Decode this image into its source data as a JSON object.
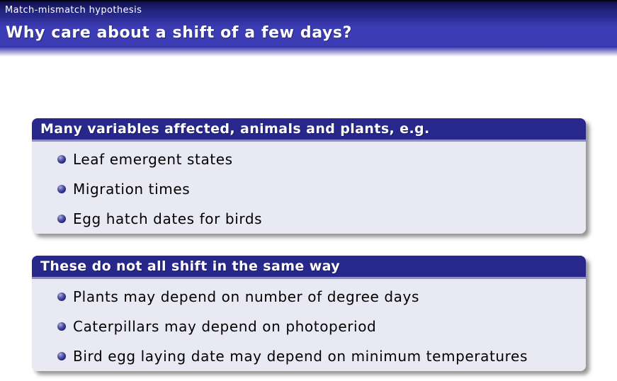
{
  "header": {
    "section": "Match-mismatch hypothesis",
    "title": "Why care about a shift of a few days?"
  },
  "blocks": [
    {
      "title": "Many variables affected, animals and plants, e.g.",
      "items": [
        "Leaf emergent states",
        "Migration times",
        "Egg hatch dates for birds"
      ]
    },
    {
      "title": "These do not all shift in the same way",
      "items": [
        "Plants may depend on number of degree days",
        "Caterpillars may depend on photoperiod",
        "Bird egg laying date may depend on minimum temperatures"
      ]
    }
  ],
  "colors": {
    "top_bar": "#23237e",
    "title_bar": "#3c3cb4",
    "block_header": "#28288c",
    "block_body": "#e9e9f4",
    "bullet": "#24247a",
    "text": "#000000"
  }
}
